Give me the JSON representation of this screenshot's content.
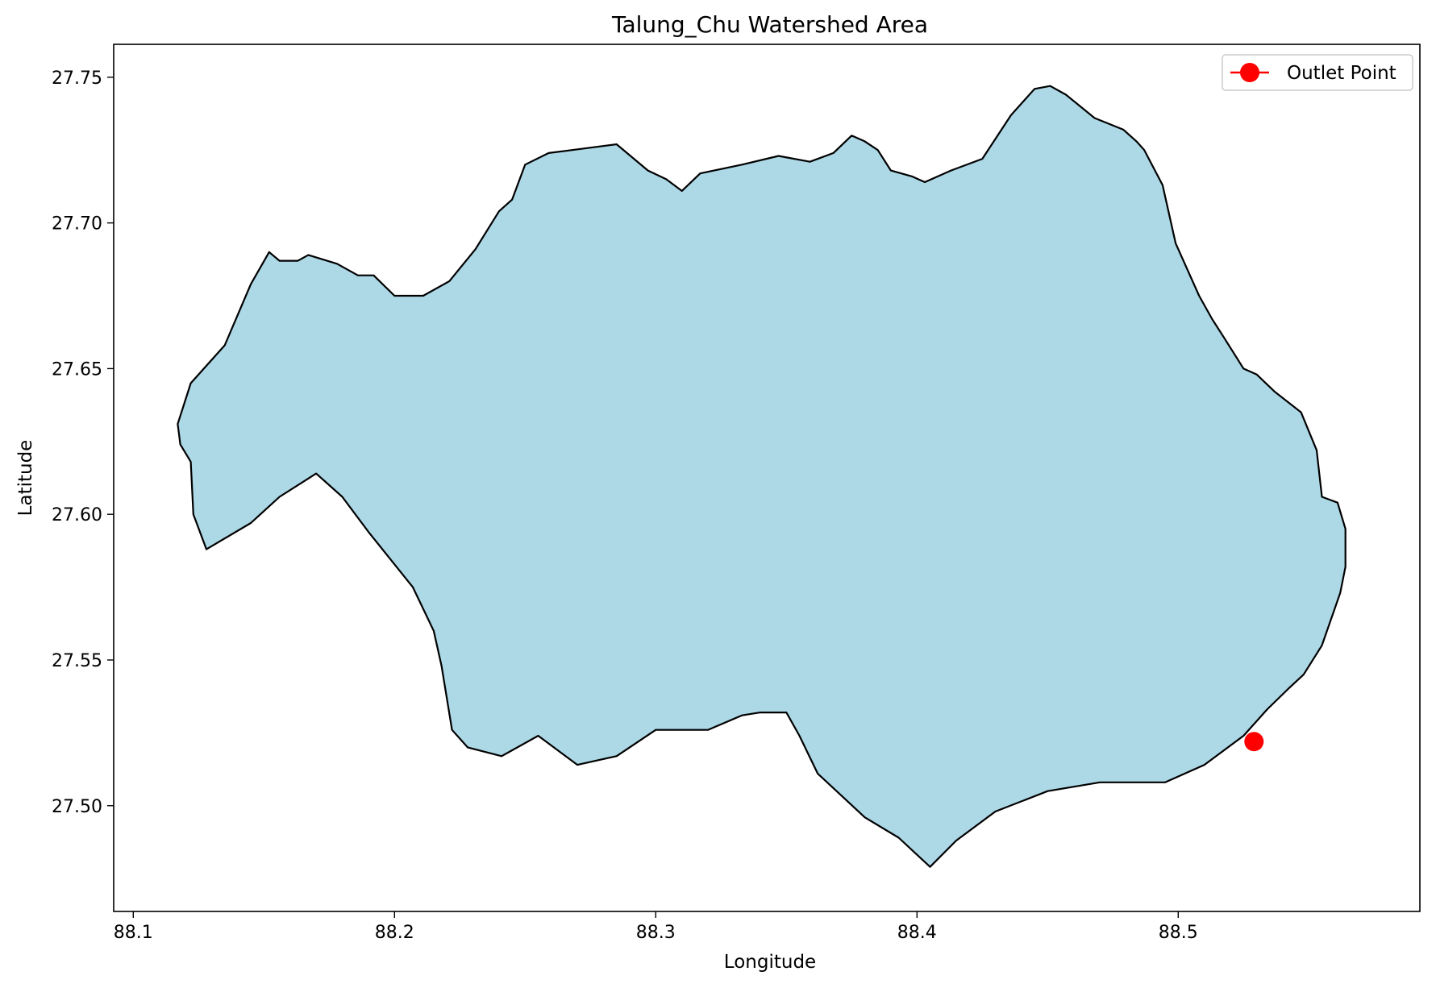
{
  "chart_data": {
    "type": "map",
    "title": "Talung_Chu Watershed Area",
    "xlabel": "Longitude",
    "ylabel": "Latitude",
    "xlim": [
      88.0925,
      88.5925
    ],
    "ylim": [
      27.4637,
      27.7613
    ],
    "x_ticks": [
      "88.1",
      "88.2",
      "88.3",
      "88.4",
      "88.5"
    ],
    "x_tick_values": [
      88.1,
      88.2,
      88.3,
      88.4,
      88.5
    ],
    "y_ticks": [
      "27.50",
      "27.55",
      "27.60",
      "27.65",
      "27.70",
      "27.75"
    ],
    "y_tick_values": [
      27.5,
      27.55,
      27.6,
      27.65,
      27.7,
      27.75
    ],
    "grid": false,
    "legend_position": "top-right",
    "legend": [
      {
        "label": "Outlet Point",
        "color": "#ff0000",
        "marker": "circle"
      }
    ],
    "watershed": {
      "fill_color": "#add8e6",
      "edge_color": "#000000",
      "boundary": [
        [
          88.117,
          27.631
        ],
        [
          88.122,
          27.645
        ],
        [
          88.135,
          27.658
        ],
        [
          88.145,
          27.679
        ],
        [
          88.152,
          27.69
        ],
        [
          88.156,
          27.687
        ],
        [
          88.163,
          27.687
        ],
        [
          88.167,
          27.689
        ],
        [
          88.178,
          27.686
        ],
        [
          88.186,
          27.682
        ],
        [
          88.192,
          27.682
        ],
        [
          88.2,
          27.675
        ],
        [
          88.211,
          27.675
        ],
        [
          88.221,
          27.68
        ],
        [
          88.231,
          27.691
        ],
        [
          88.24,
          27.704
        ],
        [
          88.245,
          27.708
        ],
        [
          88.25,
          27.72
        ],
        [
          88.259,
          27.724
        ],
        [
          88.268,
          27.725
        ],
        [
          88.285,
          27.727
        ],
        [
          88.297,
          27.718
        ],
        [
          88.304,
          27.715
        ],
        [
          88.31,
          27.711
        ],
        [
          88.317,
          27.717
        ],
        [
          88.333,
          27.72
        ],
        [
          88.347,
          27.723
        ],
        [
          88.359,
          27.721
        ],
        [
          88.368,
          27.724
        ],
        [
          88.375,
          27.73
        ],
        [
          88.38,
          27.728
        ],
        [
          88.385,
          27.725
        ],
        [
          88.39,
          27.718
        ],
        [
          88.398,
          27.716
        ],
        [
          88.403,
          27.714
        ],
        [
          88.413,
          27.718
        ],
        [
          88.425,
          27.722
        ],
        [
          88.436,
          27.737
        ],
        [
          88.445,
          27.746
        ],
        [
          88.451,
          27.747
        ],
        [
          88.457,
          27.744
        ],
        [
          88.468,
          27.736
        ],
        [
          88.479,
          27.732
        ],
        [
          88.484,
          27.728
        ],
        [
          88.487,
          27.725
        ],
        [
          88.494,
          27.713
        ],
        [
          88.499,
          27.693
        ],
        [
          88.508,
          27.675
        ],
        [
          88.513,
          27.667
        ],
        [
          88.518,
          27.66
        ],
        [
          88.525,
          27.65
        ],
        [
          88.53,
          27.648
        ],
        [
          88.537,
          27.642
        ],
        [
          88.547,
          27.635
        ],
        [
          88.553,
          27.622
        ],
        [
          88.555,
          27.606
        ],
        [
          88.561,
          27.604
        ],
        [
          88.564,
          27.595
        ],
        [
          88.564,
          27.582
        ],
        [
          88.562,
          27.573
        ],
        [
          88.555,
          27.555
        ],
        [
          88.548,
          27.545
        ],
        [
          88.542,
          27.54
        ],
        [
          88.534,
          27.533
        ],
        [
          88.525,
          27.524
        ],
        [
          88.51,
          27.514
        ],
        [
          88.495,
          27.508
        ],
        [
          88.47,
          27.508
        ],
        [
          88.45,
          27.505
        ],
        [
          88.43,
          27.498
        ],
        [
          88.415,
          27.488
        ],
        [
          88.405,
          27.479
        ],
        [
          88.393,
          27.489
        ],
        [
          88.38,
          27.496
        ],
        [
          88.362,
          27.511
        ],
        [
          88.355,
          27.524
        ],
        [
          88.35,
          27.532
        ],
        [
          88.34,
          27.532
        ],
        [
          88.333,
          27.531
        ],
        [
          88.32,
          27.526
        ],
        [
          88.3,
          27.526
        ],
        [
          88.285,
          27.517
        ],
        [
          88.27,
          27.514
        ],
        [
          88.255,
          27.524
        ],
        [
          88.241,
          27.517
        ],
        [
          88.228,
          27.52
        ],
        [
          88.222,
          27.526
        ],
        [
          88.218,
          27.548
        ],
        [
          88.215,
          27.56
        ],
        [
          88.207,
          27.575
        ],
        [
          88.19,
          27.594
        ],
        [
          88.18,
          27.606
        ],
        [
          88.17,
          27.614
        ],
        [
          88.156,
          27.606
        ],
        [
          88.145,
          27.597
        ],
        [
          88.128,
          27.588
        ],
        [
          88.123,
          27.6
        ],
        [
          88.122,
          27.618
        ],
        [
          88.118,
          27.624
        ]
      ]
    },
    "outlet_point": {
      "lon": 88.529,
      "lat": 27.522,
      "color": "#ff0000"
    }
  }
}
